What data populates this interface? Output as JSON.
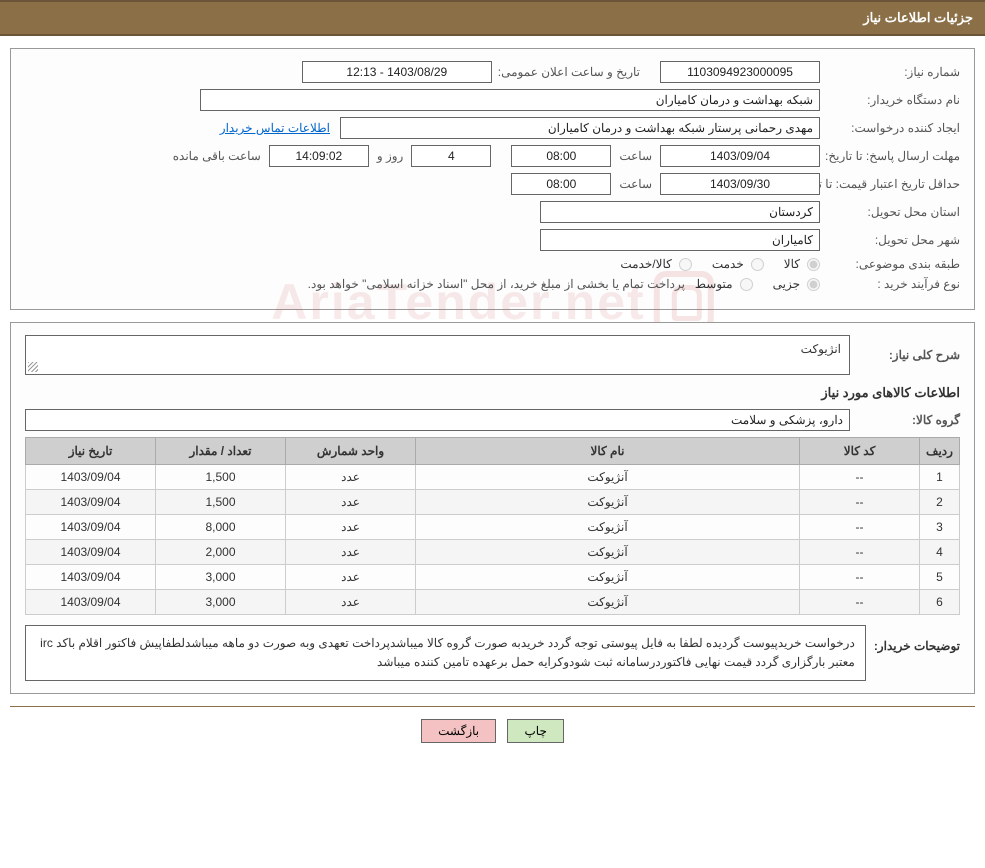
{
  "header": {
    "title": "جزئیات اطلاعات نیاز"
  },
  "basic": {
    "need_no_label": "شماره نیاز:",
    "need_no": "1103094923000095",
    "announce_label": "تاریخ و ساعت اعلان عمومی:",
    "announce_value": "1403/08/29 - 12:13",
    "buyer_org_label": "نام دستگاه خریدار:",
    "buyer_org": "شبکه بهداشت و درمان کامیاران",
    "requester_label": "ایجاد کننده درخواست:",
    "requester": "مهدی رحمانی پرستار شبکه بهداشت و درمان کامیاران",
    "contact_link": "اطلاعات تماس خریدار"
  },
  "deadline": {
    "send_label": "مهلت ارسال پاسخ:",
    "to_label": "تا تاریخ:",
    "date1": "1403/09/04",
    "time_label": "ساعت",
    "time1": "08:00",
    "days_val": "4",
    "days_and": "روز و",
    "remain_time": "14:09:02",
    "remain_label": "ساعت باقی مانده",
    "validity_label": "حداقل تاریخ اعتبار قیمت:",
    "date2": "1403/09/30",
    "time2": "08:00"
  },
  "location": {
    "province_label": "استان محل تحویل:",
    "province": "کردستان",
    "city_label": "شهر محل تحویل:",
    "city": "کامیاران"
  },
  "class": {
    "label": "طبقه بندی موضوعی:",
    "opt_goods": "کالا",
    "opt_service": "خدمت",
    "opt_both": "کالا/خدمت"
  },
  "process": {
    "label": "نوع فرآیند خرید :",
    "opt_partial": "جزیی",
    "opt_medium": "متوسط",
    "note": "پرداخت تمام یا بخشی از مبلغ خرید، از محل \"اسناد خزانه اسلامی\" خواهد بود."
  },
  "need_desc": {
    "label": "شرح کلی نیاز:",
    "value": "انژیوکت"
  },
  "items_title": "اطلاعات کالاهای مورد نیاز",
  "group": {
    "label": "گروه کالا:",
    "value": "دارو، پزشکی و سلامت"
  },
  "table": {
    "headers": {
      "idx": "ردیف",
      "code": "کد کالا",
      "name": "نام کالا",
      "unit": "واحد شمارش",
      "qty": "تعداد / مقدار",
      "date": "تاریخ نیاز"
    },
    "rows": [
      {
        "idx": "1",
        "code": "--",
        "name": "آنژیوکت",
        "unit": "عدد",
        "qty": "1,500",
        "date": "1403/09/04"
      },
      {
        "idx": "2",
        "code": "--",
        "name": "آنژیوکت",
        "unit": "عدد",
        "qty": "1,500",
        "date": "1403/09/04"
      },
      {
        "idx": "3",
        "code": "--",
        "name": "آنژیوکت",
        "unit": "عدد",
        "qty": "8,000",
        "date": "1403/09/04"
      },
      {
        "idx": "4",
        "code": "--",
        "name": "آنژیوکت",
        "unit": "عدد",
        "qty": "2,000",
        "date": "1403/09/04"
      },
      {
        "idx": "5",
        "code": "--",
        "name": "آنژیوکت",
        "unit": "عدد",
        "qty": "3,000",
        "date": "1403/09/04"
      },
      {
        "idx": "6",
        "code": "--",
        "name": "آنژیوکت",
        "unit": "عدد",
        "qty": "3,000",
        "date": "1403/09/04"
      }
    ]
  },
  "buyer_desc": {
    "label": "توضیحات خریدار:",
    "text": "درخواست خریدپیوست گردیده لطفا به فایل پیوستی توجه گردد خریدبه صورت گروه کالا   میباشدپرداخت تعهدی وبه صورت دو ماهه میباشدلطفاپیش فاکتور اقلام باکد irc معتبر بارگزاری گردد قیمت نهایی فاکتوردرسامانه ثبت شودوکرایه حمل برعهده تامین کننده میباشد"
  },
  "buttons": {
    "print": "چاپ",
    "back": "بازگشت"
  },
  "watermark": "AriaTender.net",
  "colors": {
    "header_bg": "#8b6f47",
    "border": "#666",
    "th_bg": "#cfcfcf"
  }
}
